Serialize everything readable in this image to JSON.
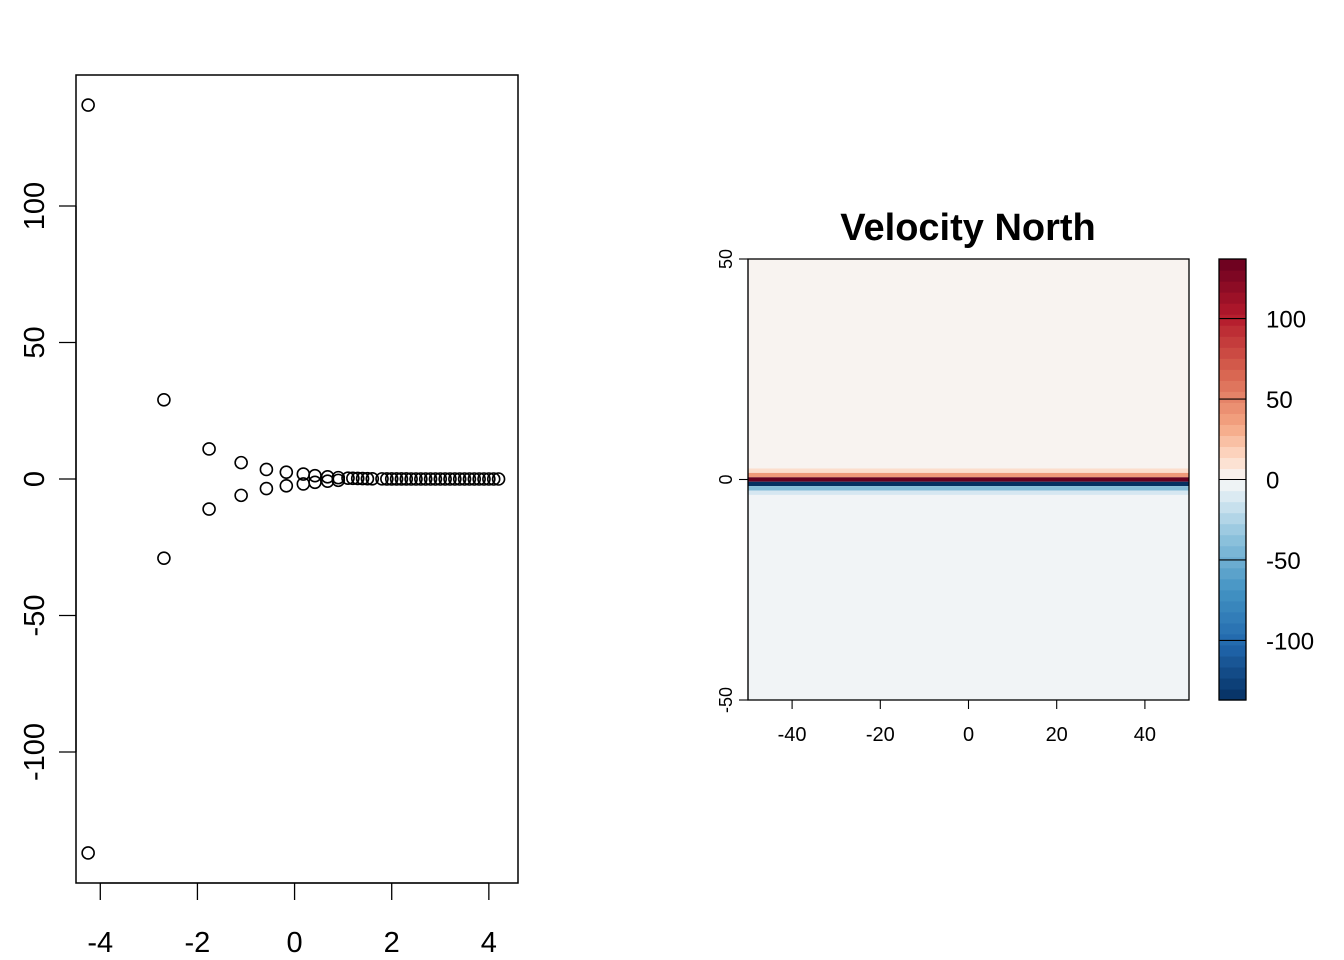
{
  "chart_data": [
    {
      "type": "scatter",
      "title": "",
      "xlabel": "",
      "ylabel": "",
      "xlim": [
        -4.5,
        4.6
      ],
      "ylim": [
        -148,
        148
      ],
      "xticks": [
        -4,
        -2,
        0,
        2,
        4
      ],
      "yticks": [
        -100,
        -50,
        0,
        50,
        100
      ],
      "xtick_labels": [
        "-4",
        "-2",
        "0",
        "2",
        "4"
      ],
      "ytick_labels": [
        "-100",
        "-50",
        "0",
        "50",
        "100"
      ],
      "grid": false,
      "marker": "open-circle",
      "series": [
        {
          "x": [
            -4.25,
            -4.25,
            -2.69,
            -2.69,
            -1.76,
            -1.76,
            -1.1,
            -1.1,
            -0.58,
            -0.58,
            -0.17,
            -0.17,
            0.18,
            0.18,
            0.42,
            0.42,
            0.68,
            0.68,
            0.9,
            0.9,
            1.1,
            1.2,
            1.3,
            1.4,
            1.5,
            1.6,
            1.8,
            1.9,
            2.0,
            2.1,
            2.2,
            2.3,
            2.4,
            2.5,
            2.6,
            2.7,
            2.8,
            2.9,
            3.0,
            3.1,
            3.2,
            3.3,
            3.4,
            3.5,
            3.6,
            3.7,
            3.8,
            3.9,
            4.0,
            4.1,
            4.2
          ],
          "y": [
            137,
            -137,
            29,
            -29,
            11,
            -11,
            6,
            -6,
            3.5,
            -3.5,
            2.5,
            -2.5,
            1.8,
            -1.8,
            1.2,
            -1.2,
            0.8,
            -0.8,
            0.5,
            -0.5,
            0.3,
            0.25,
            0.2,
            0.15,
            0.1,
            0.08,
            0.05,
            0.04,
            0.03,
            0.02,
            0.01,
            0.01,
            0,
            0,
            0,
            0,
            0,
            0,
            0,
            0,
            0,
            0,
            0,
            0,
            0,
            0,
            0,
            0,
            0,
            0,
            0
          ]
        }
      ]
    },
    {
      "type": "heatmap",
      "title": "Velocity North",
      "xlabel": "",
      "ylabel": "",
      "xlim": [
        -50,
        50
      ],
      "ylim": [
        -50,
        50
      ],
      "xticks": [
        -40,
        -20,
        0,
        20,
        40
      ],
      "yticks": [
        -50,
        0,
        50
      ],
      "xtick_labels": [
        "-40",
        "-20",
        "0",
        "20",
        "40"
      ],
      "ytick_labels": [
        "-50",
        "0",
        "50"
      ],
      "colormap": "RdBu (blue negative, red positive)",
      "zlim": [
        -137,
        137
      ],
      "description_rows": [
        {
          "y_from": 2.5,
          "y_to": 50,
          "value": 2
        },
        {
          "y_from": 1.5,
          "y_to": 2.5,
          "value": 12
        },
        {
          "y_from": 0.5,
          "y_to": 1.5,
          "value": 40
        },
        {
          "y_from": -0.5,
          "y_to": 0.5,
          "value": 137
        },
        {
          "y_from": -1.5,
          "y_to": -0.5,
          "value": -137
        },
        {
          "y_from": -2.5,
          "y_to": -1.5,
          "value": -40
        },
        {
          "y_from": -3.5,
          "y_to": -2.5,
          "value": -12
        },
        {
          "y_from": -50,
          "y_to": -3.5,
          "value": -2
        }
      ],
      "colorbar": {
        "ticks": [
          100,
          50,
          0,
          -50,
          -100
        ],
        "tick_labels": [
          "100",
          "50",
          "0",
          "-50",
          "-100"
        ],
        "colors_high": "#67001f",
        "colors_mid": "#f7f7f7",
        "colors_low": "#053061"
      }
    }
  ]
}
